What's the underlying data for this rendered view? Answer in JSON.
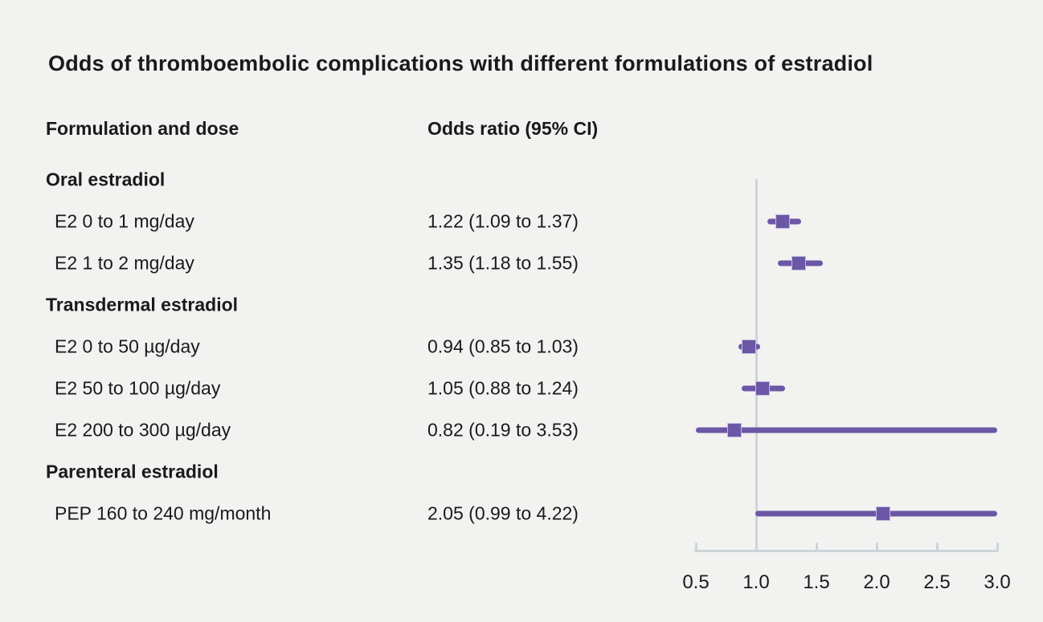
{
  "title": "Odds of thromboembolic complications with different formulations of estradiol",
  "columns": {
    "formulation": "Formulation and dose",
    "odds_ratio": "Odds ratio (95% CI)"
  },
  "colors": {
    "background": "#f2f2f1",
    "text": "#1a1a1a",
    "marker": "#6b57a5",
    "marker_border": "#c5bcdf",
    "axis": "#ccd3db"
  },
  "chart_data": {
    "type": "forest",
    "xlabel": "",
    "ylabel": "",
    "xlim": [
      0.5,
      3.0
    ],
    "reference_line": 1.0,
    "x_ticks": [
      0.5,
      1.0,
      1.5,
      2.0,
      2.5,
      3.0
    ],
    "x_tick_labels": [
      "0.5",
      "1.0",
      "1.5",
      "2.0",
      "2.5",
      "3.0"
    ],
    "legend": null,
    "grid": false,
    "rows": [
      {
        "kind": "group",
        "label": "Oral estradiol"
      },
      {
        "kind": "item",
        "label": "E2 0 to 1 mg/day",
        "value_text": "1.22 (1.09 to 1.37)",
        "or": 1.22,
        "ci_low": 1.09,
        "ci_high": 1.37
      },
      {
        "kind": "item",
        "label": "E2 1 to 2 mg/day",
        "value_text": "1.35 (1.18 to 1.55)",
        "or": 1.35,
        "ci_low": 1.18,
        "ci_high": 1.55
      },
      {
        "kind": "group",
        "label": "Transdermal estradiol"
      },
      {
        "kind": "item",
        "label": "E2 0 to 50 µg/day",
        "value_text": "0.94 (0.85 to 1.03)",
        "or": 0.94,
        "ci_low": 0.85,
        "ci_high": 1.03
      },
      {
        "kind": "item",
        "label": "E2 50 to 100 µg/day",
        "value_text": "1.05 (0.88 to 1.24)",
        "or": 1.05,
        "ci_low": 0.88,
        "ci_high": 1.24
      },
      {
        "kind": "item",
        "label": "E2 200 to 300 µg/day",
        "value_text": "0.82 (0.19 to 3.53)",
        "or": 0.82,
        "ci_low": 0.19,
        "ci_high": 3.53
      },
      {
        "kind": "group",
        "label": "Parenteral estradiol"
      },
      {
        "kind": "item",
        "label": "PEP 160 to 240 mg/month",
        "value_text": "2.05 (0.99 to 4.22)",
        "or": 2.05,
        "ci_low": 0.99,
        "ci_high": 4.22
      }
    ]
  }
}
